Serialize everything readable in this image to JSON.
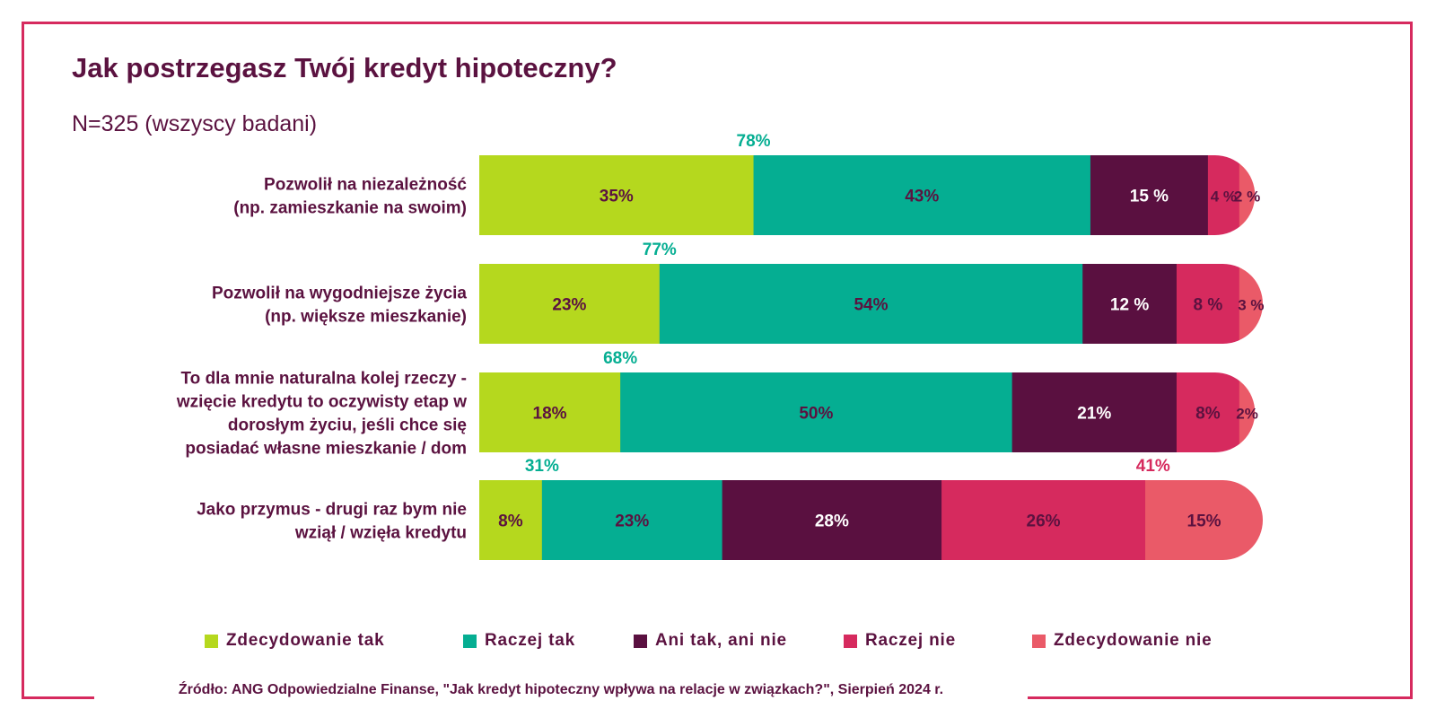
{
  "title": "Jak postrzegasz Twój kredyt hipoteczny?",
  "subtitle": "N=325 (wszyscy badani)",
  "source": "Źródło: ANG Odpowiedzialne Finanse, \"Jak kredyt hipoteczny wpływa na relacje w związkach?\", Sierpień 2024 r.",
  "colors": {
    "frame": "#d62a5e",
    "text": "#5b1240",
    "series": [
      "#b5d81e",
      "#05ae92",
      "#5a1040",
      "#d62a5e",
      "#ea5a68"
    ]
  },
  "chart_data": {
    "type": "bar",
    "orientation": "horizontal",
    "stacked": true,
    "xlim": [
      0,
      100
    ],
    "categories": [
      [
        "Pozwolił na niezależność",
        "(np. zamieszkanie na swoim)"
      ],
      [
        "Pozwolił na wygodniejsze życia",
        "(np. większe mieszkanie)"
      ],
      [
        "To dla mnie naturalna kolej rzeczy -",
        "wzięcie kredytu to oczywisty etap w",
        "dorosłym życiu, jeśli chce się",
        "posiadać własne mieszkanie / dom"
      ],
      [
        "Jako przymus - drugi raz bym nie",
        "wziął / wzięła kredytu"
      ]
    ],
    "series": [
      {
        "name": "Zdecydowanie tak",
        "values": [
          35,
          23,
          18,
          8
        ]
      },
      {
        "name": "Raczej tak",
        "values": [
          43,
          54,
          50,
          23
        ]
      },
      {
        "name": "Ani tak, ani nie",
        "values": [
          15,
          12,
          21,
          28
        ]
      },
      {
        "name": "Raczej nie",
        "values": [
          4,
          8,
          8,
          26
        ]
      },
      {
        "name": "Zdecydowanie nie",
        "values": [
          2,
          3,
          2,
          15
        ]
      }
    ],
    "data_labels": [
      [
        "35%",
        "43%",
        "15 %",
        "4 %",
        "2 %"
      ],
      [
        "23%",
        "54%",
        "12 %",
        "8 %",
        "3 %"
      ],
      [
        "18%",
        "50%",
        "21%",
        "8%",
        "2%"
      ],
      [
        "8%",
        "23%",
        "28%",
        "26%",
        "15%"
      ]
    ],
    "totals": [
      {
        "label": "78%",
        "color": "#05ae92",
        "after_series": 1
      },
      {
        "label": "77%",
        "color": "#05ae92",
        "after_series": 1
      },
      {
        "label": "68%",
        "color": "#05ae92",
        "after_series": 1
      },
      {
        "label": "31%",
        "color": "#05ae92",
        "after_series": 1
      },
      {
        "label": "41%",
        "color": "#d62a5e",
        "after_series": 4,
        "row": 3
      }
    ],
    "legend_position": "bottom"
  }
}
